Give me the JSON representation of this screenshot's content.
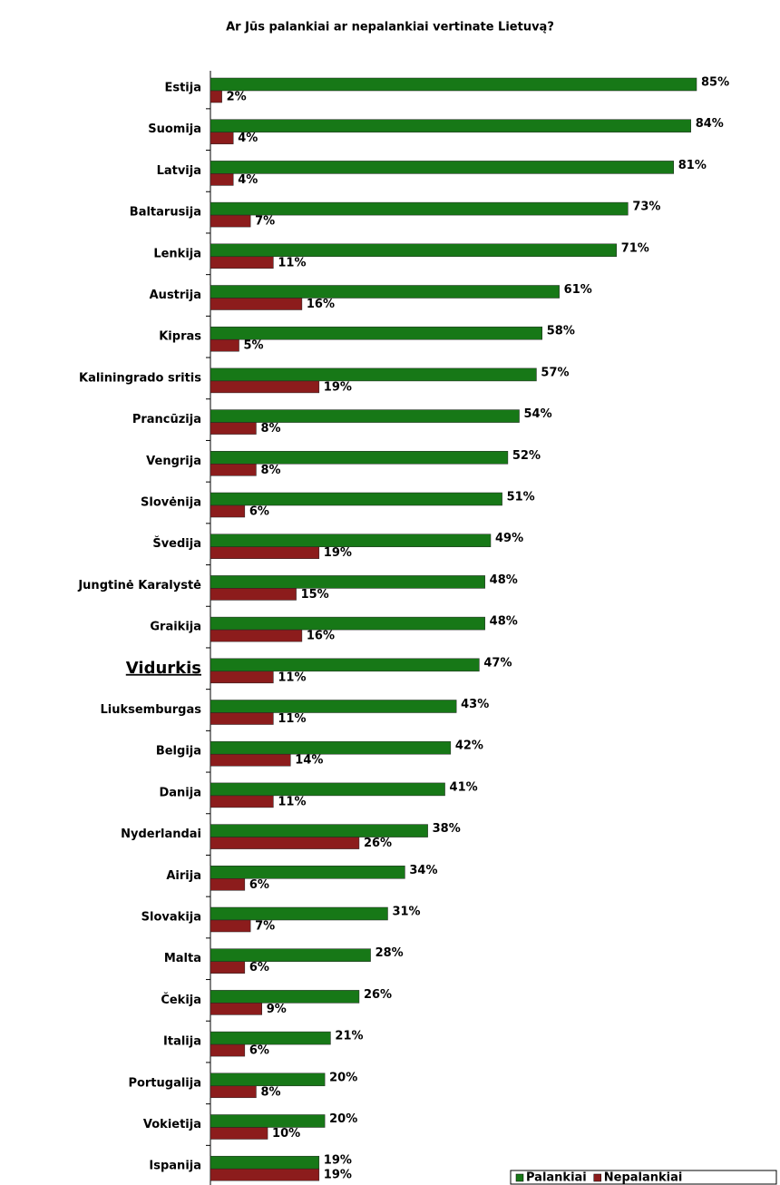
{
  "chart_data": {
    "type": "barh",
    "title": "Ar Jūs palankiai ar nepalankiai vertinate Lietuvą?",
    "categories": [
      "Estija",
      "Suomija",
      "Latvija",
      "Baltarusija",
      "Lenkija",
      "Austrija",
      "Kipras",
      "Kaliningrado sritis",
      "Prancūzija",
      "Vengrija",
      "Slovėnija",
      "Švedija",
      "Jungtinė Karalystė",
      "Graikija",
      "Vidurkis",
      "Liuksemburgas",
      "Belgija",
      "Danija",
      "Nyderlandai",
      "Airija",
      "Slovakija",
      "Malta",
      "Čekija",
      "Italija",
      "Portugalija",
      "Vokietija",
      "Ispanija"
    ],
    "emphasized_category": 14,
    "legend": "bottom-right",
    "series": [
      {
        "name": "Palankiai",
        "color": "#177817",
        "values": [
          85,
          84,
          81,
          73,
          71,
          61,
          58,
          57,
          54,
          52,
          51,
          49,
          48,
          48,
          47,
          43,
          42,
          41,
          38,
          34,
          31,
          28,
          26,
          21,
          20,
          20,
          19
        ],
        "value_labels": [
          "85%",
          "84%",
          "81%",
          "73%",
          "71%",
          "61%",
          "58%",
          "57%",
          "54%",
          "52%",
          "51%",
          "49%",
          "48%",
          "48%",
          "47%",
          "43%",
          "42%",
          "41%",
          "38%",
          "34%",
          "31%",
          "28%",
          "26%",
          "21%",
          "20%",
          "20%",
          "19%"
        ]
      },
      {
        "name": "Nepalankiai",
        "color": "#8c1c1c",
        "values": [
          2,
          4,
          4,
          7,
          11,
          16,
          5,
          19,
          8,
          8,
          6,
          19,
          15,
          16,
          11,
          11,
          14,
          11,
          26,
          6,
          7,
          6,
          9,
          6,
          8,
          10,
          19
        ],
        "value_labels": [
          "2%",
          "4%",
          "4%",
          "7%",
          "11%",
          "16%",
          "5%",
          "19%",
          "8%",
          "8%",
          "6%",
          "19%",
          "15%",
          "16%",
          "11%",
          "11%",
          "14%",
          "11%",
          "26%",
          "6%",
          "7%",
          "6%",
          "9%",
          "6%",
          "8%",
          "10%",
          "19%"
        ]
      }
    ]
  }
}
